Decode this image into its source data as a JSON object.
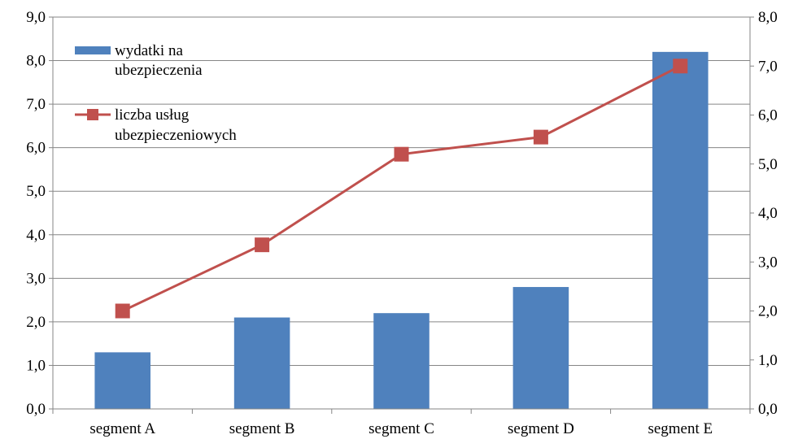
{
  "chart_data": {
    "type": "bar",
    "categories": [
      "segment A",
      "segment B",
      "segment C",
      "segment D",
      "segment E"
    ],
    "series": [
      {
        "name": "wydatki na ubezpieczenia",
        "legend_lines": [
          "wydatki na",
          "ubezpieczenia"
        ],
        "type": "bar",
        "axis": "left",
        "color": "#4F81BD",
        "values": [
          1.3,
          2.1,
          2.2,
          2.8,
          8.2
        ]
      },
      {
        "name": "liczba usług ubezpieczeniowych",
        "legend_lines": [
          "liczba usług",
          "ubezpieczeniowych"
        ],
        "type": "line",
        "axis": "right",
        "color": "#C0504D",
        "marker": "square",
        "values": [
          2.0,
          3.35,
          5.2,
          5.55,
          7.0
        ]
      }
    ],
    "y_left": {
      "ylim": [
        0,
        9
      ],
      "ticks": [
        "0,0",
        "1,0",
        "2,0",
        "3,0",
        "4,0",
        "5,0",
        "6,0",
        "7,0",
        "8,0",
        "9,0"
      ]
    },
    "y_right": {
      "ylim": [
        0,
        8
      ],
      "ticks": [
        "0,0",
        "1,0",
        "2,0",
        "3,0",
        "4,0",
        "5,0",
        "6,0",
        "7,0",
        "8,0"
      ]
    },
    "grid": true,
    "legend_position": "top-left",
    "title": "",
    "xlabel": "",
    "ylabel": ""
  }
}
